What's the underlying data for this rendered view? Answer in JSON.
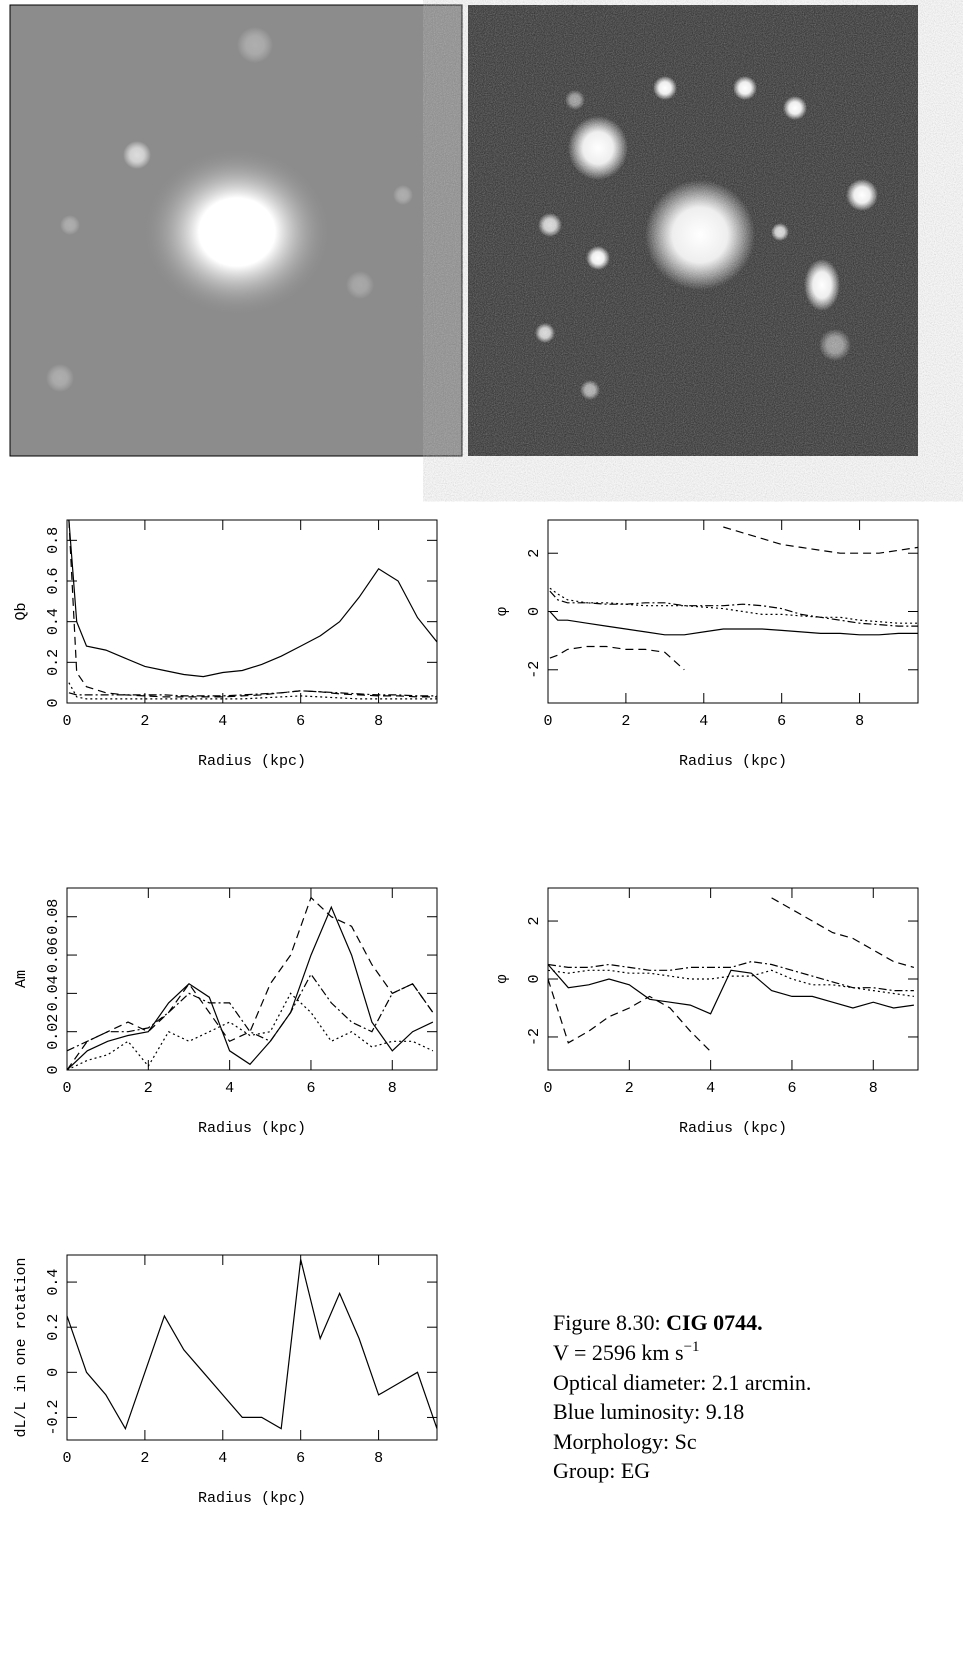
{
  "chart_data": [
    {
      "type": "line",
      "xlabel": "Radius (kpc)",
      "ylabel": "Qb",
      "x": [
        0.05,
        0.25,
        0.5,
        1,
        1.5,
        2,
        2.5,
        3,
        3.5,
        4,
        4.5,
        5,
        5.5,
        6,
        6.5,
        7,
        7.5,
        8,
        8.5,
        9,
        9.5
      ],
      "series": [
        {
          "color": "#000",
          "dash": "solid",
          "values": [
            0.9,
            0.4,
            0.28,
            0.26,
            0.22,
            0.18,
            0.16,
            0.14,
            0.13,
            0.15,
            0.16,
            0.19,
            0.23,
            0.28,
            0.33,
            0.4,
            0.52,
            0.66,
            0.6,
            0.42,
            0.3
          ]
        },
        {
          "color": "#000",
          "dash": "dashed",
          "values": [
            0.9,
            0.15,
            0.08,
            0.05,
            0.04,
            0.035,
            0.03,
            0.03,
            0.03,
            0.03,
            0.035,
            0.04,
            0.05,
            0.06,
            0.055,
            0.045,
            0.04,
            0.035,
            0.035,
            0.03,
            0.03
          ]
        },
        {
          "color": "#000",
          "dash": "dotted",
          "values": [
            0.1,
            0.03,
            0.02,
            0.02,
            0.02,
            0.02,
            0.02,
            0.02,
            0.02,
            0.02,
            0.02,
            0.025,
            0.03,
            0.035,
            0.03,
            0.025,
            0.02,
            0.02,
            0.02,
            0.02,
            0.02
          ]
        },
        {
          "color": "#000",
          "dash": "dashdot",
          "values": [
            0.05,
            0.04,
            0.04,
            0.04,
            0.04,
            0.04,
            0.04,
            0.035,
            0.035,
            0.035,
            0.04,
            0.045,
            0.05,
            0.06,
            0.055,
            0.05,
            0.045,
            0.04,
            0.04,
            0.035,
            0.035
          ]
        }
      ],
      "xlim": [
        0,
        9.5
      ],
      "ylim": [
        0,
        0.9
      ],
      "xticks": [
        0,
        2,
        4,
        6,
        8
      ],
      "yticks": [
        0,
        0.2,
        0.4,
        0.6,
        0.8
      ]
    },
    {
      "type": "line",
      "xlabel": "Radius (kpc)",
      "ylabel": "φ",
      "x": [
        0.05,
        0.25,
        0.5,
        1,
        1.5,
        2,
        2.5,
        3,
        3.5,
        4,
        4.5,
        5,
        5.5,
        6,
        6.5,
        7,
        7.5,
        8,
        8.5,
        9,
        9.5
      ],
      "series": [
        {
          "color": "#000",
          "dash": "solid",
          "values": [
            0,
            -0.3,
            -0.3,
            -0.4,
            -0.5,
            -0.6,
            -0.7,
            -0.8,
            -0.8,
            -0.7,
            -0.6,
            -0.6,
            -0.6,
            -0.65,
            -0.7,
            -0.75,
            -0.75,
            -0.8,
            -0.8,
            -0.75,
            -0.75
          ]
        },
        {
          "color": "#000",
          "dash": "dashed",
          "values": [
            -1.6,
            -1.5,
            -1.3,
            -1.2,
            -1.2,
            -1.3,
            -1.3,
            -1.4,
            -2.0,
            null,
            2.9,
            2.7,
            2.5,
            2.3,
            2.2,
            2.1,
            2.0,
            2.0,
            2.0,
            2.1,
            2.2
          ]
        },
        {
          "color": "#000",
          "dash": "dotted",
          "values": [
            0.8,
            0.6,
            0.4,
            0.3,
            0.3,
            0.25,
            0.2,
            0.2,
            0.2,
            0.15,
            0.1,
            0.0,
            -0.1,
            -0.1,
            -0.15,
            -0.2,
            -0.2,
            -0.3,
            -0.35,
            -0.4,
            -0.4
          ]
        },
        {
          "color": "#000",
          "dash": "dashdot",
          "values": [
            0.7,
            0.4,
            0.3,
            0.3,
            0.25,
            0.25,
            0.3,
            0.3,
            0.2,
            0.2,
            0.2,
            0.25,
            0.2,
            0.1,
            -0.1,
            -0.2,
            -0.3,
            -0.4,
            -0.45,
            -0.5,
            -0.5
          ]
        }
      ],
      "xlim": [
        0,
        9.5
      ],
      "ylim": [
        -3.14,
        3.14
      ],
      "xticks": [
        0,
        2,
        4,
        6,
        8
      ],
      "yticks": [
        -2,
        0,
        2
      ]
    },
    {
      "type": "line",
      "xlabel": "Radius (kpc)",
      "ylabel": "Am",
      "x": [
        0,
        0.5,
        1,
        1.5,
        2,
        2.5,
        3,
        3.5,
        4,
        4.5,
        5,
        5.5,
        6,
        6.5,
        7,
        7.5,
        8,
        8.5,
        9
      ],
      "series": [
        {
          "color": "#000",
          "dash": "solid",
          "values": [
            0,
            0.01,
            0.015,
            0.018,
            0.02,
            0.035,
            0.045,
            0.038,
            0.01,
            0.003,
            0.015,
            0.03,
            0.06,
            0.085,
            0.06,
            0.025,
            0.01,
            0.02,
            0.025
          ]
        },
        {
          "color": "#000",
          "dash": "dashed",
          "values": [
            0,
            0.015,
            0.02,
            0.025,
            0.02,
            0.03,
            0.045,
            0.03,
            0.015,
            0.02,
            0.045,
            0.06,
            0.09,
            0.08,
            0.075,
            0.055,
            0.04,
            0.045,
            0.03
          ]
        },
        {
          "color": "#000",
          "dash": "dotted",
          "values": [
            0,
            0.005,
            0.008,
            0.015,
            0.002,
            0.02,
            0.015,
            0.02,
            0.025,
            0.018,
            0.02,
            0.04,
            0.03,
            0.015,
            0.02,
            0.012,
            0.015,
            0.015,
            0.01
          ]
        },
        {
          "color": "#000",
          "dash": "dashdot",
          "values": [
            0.01,
            0.015,
            0.02,
            0.02,
            0.022,
            0.03,
            0.04,
            0.035,
            0.035,
            0.02,
            0.015,
            0.03,
            0.05,
            0.035,
            0.025,
            0.02,
            0.04,
            0.045,
            0.03
          ]
        }
      ],
      "xlim": [
        0,
        9.1
      ],
      "ylim": [
        0,
        0.095
      ],
      "xticks": [
        0,
        2,
        4,
        6,
        8
      ],
      "yticks": [
        0,
        0.02,
        0.04,
        0.06,
        0.08
      ]
    },
    {
      "type": "line",
      "xlabel": "Radius (kpc)",
      "ylabel": "φ",
      "x": [
        0,
        0.5,
        1,
        1.5,
        2,
        2.5,
        3,
        3.5,
        4,
        4.5,
        5,
        5.5,
        6,
        6.5,
        7,
        7.5,
        8,
        8.5,
        9
      ],
      "series": [
        {
          "color": "#000",
          "dash": "solid",
          "values": [
            0.5,
            -0.3,
            -0.2,
            0,
            -0.2,
            -0.7,
            -0.8,
            -0.9,
            -1.2,
            0.3,
            0.2,
            -0.4,
            -0.6,
            -0.6,
            -0.8,
            -1.0,
            -0.8,
            -1.0,
            -0.9
          ]
        },
        {
          "color": "#000",
          "dash": "dashed",
          "values": [
            0,
            -2.2,
            -1.8,
            -1.3,
            -1.0,
            -0.6,
            -1.0,
            -1.8,
            -2.5,
            null,
            null,
            2.8,
            2.4,
            2.0,
            1.6,
            1.4,
            1.0,
            0.6,
            0.4
          ]
        },
        {
          "color": "#000",
          "dash": "dotted",
          "values": [
            0.3,
            0.2,
            0.3,
            0.3,
            0.2,
            0.2,
            0.1,
            0,
            0,
            0.1,
            0.1,
            0.3,
            0,
            -0.2,
            -0.2,
            -0.3,
            -0.4,
            -0.5,
            -0.6
          ]
        },
        {
          "color": "#000",
          "dash": "dashdot",
          "values": [
            0.5,
            0.4,
            0.4,
            0.5,
            0.4,
            0.3,
            0.3,
            0.4,
            0.4,
            0.4,
            0.6,
            0.5,
            0.3,
            0.1,
            -0.1,
            -0.3,
            -0.3,
            -0.4,
            -0.4
          ]
        }
      ],
      "xlim": [
        0,
        9.1
      ],
      "ylim": [
        -3.14,
        3.14
      ],
      "xticks": [
        0,
        2,
        4,
        6,
        8
      ],
      "yticks": [
        -2,
        0,
        2
      ]
    },
    {
      "type": "line",
      "xlabel": "Radius (kpc)",
      "ylabel": "dL/L in one rotation",
      "x": [
        0,
        0.5,
        1,
        1.5,
        2,
        2.5,
        3,
        3.5,
        4,
        4.5,
        5,
        5.5,
        6,
        6.5,
        7,
        7.5,
        8,
        8.5,
        9,
        9.5
      ],
      "series": [
        {
          "color": "#000",
          "dash": "solid",
          "values": [
            0.25,
            0.0,
            -0.1,
            -0.25,
            0.0,
            0.25,
            0.1,
            0.0,
            -0.1,
            -0.2,
            -0.2,
            -0.25,
            0.5,
            0.15,
            0.35,
            0.15,
            -0.1,
            -0.05,
            0.0,
            -0.25
          ]
        }
      ],
      "xlim": [
        0,
        9.5
      ],
      "ylim": [
        -0.3,
        0.52
      ],
      "xticks": [
        0,
        2,
        4,
        6,
        8
      ],
      "yticks": [
        -0.2,
        0,
        0.2,
        0.4
      ]
    }
  ],
  "caption": {
    "label": "Figure 8.30:",
    "name": "CIG 0744.",
    "velocity": "V = 2596 km s",
    "velocity_exponent": "−1",
    "lines": [
      "Optical diameter: 2.1 arcmin.",
      "Blue luminosity: 9.18",
      "Morphology: Sc",
      "Group: EG"
    ]
  }
}
